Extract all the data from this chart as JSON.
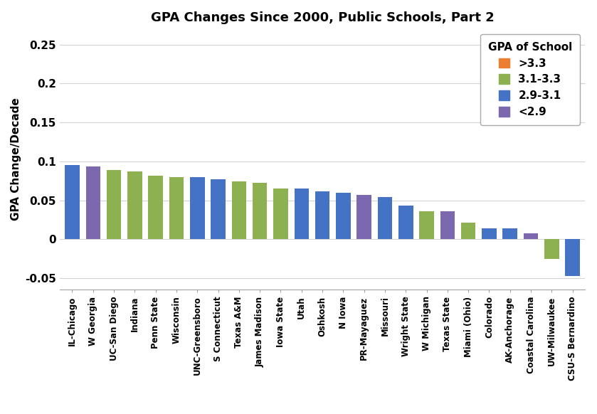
{
  "title": "GPA Changes Since 2000, Public Schools, Part 2",
  "ylabel": "GPA Change/Decade",
  "categories": [
    "IL-Chicago",
    "W Georgia",
    "UC-San Diego",
    "Indiana",
    "Penn State",
    "Wisconsin",
    "UNC-Greensboro",
    "S Connecticut",
    "Texas A&M",
    "James Madison",
    "Iowa State",
    "Utah",
    "Oshkosh",
    "N Iowa",
    "PR-Mayaguez",
    "Missouri",
    "Wright State",
    "W Michigan",
    "Texas State",
    "Miami (Ohio)",
    "Colorado",
    "AK-Anchorage",
    "Coastal Carolina",
    "UW-Milwaukee",
    "CSU-S Bernardino"
  ],
  "values": [
    0.095,
    0.093,
    0.089,
    0.087,
    0.082,
    0.08,
    0.08,
    0.077,
    0.074,
    0.072,
    0.065,
    0.065,
    0.061,
    0.06,
    0.057,
    0.054,
    0.043,
    0.036,
    0.036,
    0.021,
    0.014,
    0.014,
    0.008,
    -0.025,
    -0.047
  ],
  "colors": [
    "#4472C4",
    "#7B68AE",
    "#8DB050",
    "#8DB050",
    "#8DB050",
    "#8DB050",
    "#4472C4",
    "#4472C4",
    "#8DB050",
    "#8DB050",
    "#8DB050",
    "#4472C4",
    "#4472C4",
    "#4472C4",
    "#7B68AE",
    "#4472C4",
    "#4472C4",
    "#8DB050",
    "#7B68AE",
    "#8DB050",
    "#4472C4",
    "#4472C4",
    "#7B68AE",
    "#8DB050",
    "#4472C4"
  ],
  "legend_labels": [
    ">3.3",
    "3.1-3.3",
    "2.9-3.1",
    "<2.9"
  ],
  "legend_colors": [
    "#ED7D31",
    "#8DB050",
    "#4472C4",
    "#7B68AE"
  ],
  "ylim": [
    -0.065,
    0.27
  ],
  "yticks": [
    -0.05,
    0.0,
    0.05,
    0.1,
    0.15,
    0.2,
    0.25
  ],
  "ytick_labels": [
    "-0.05",
    "0",
    "0.05",
    "0.1",
    "0.15",
    "0.2",
    "0.25"
  ],
  "background_color": "#FFFFFF",
  "grid_color": "#D3D3D3"
}
